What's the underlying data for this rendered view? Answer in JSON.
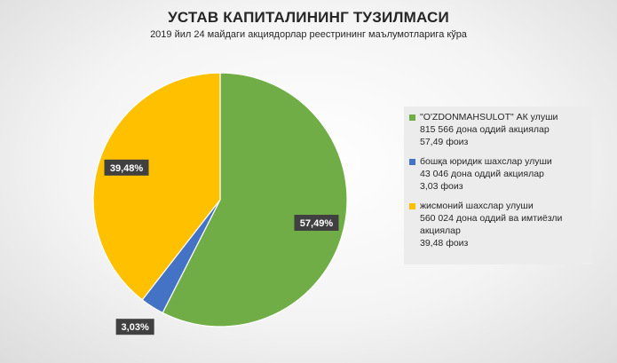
{
  "chart_data": {
    "type": "pie",
    "title": "УСТАВ КАПИТАЛИНИНГ ТУЗИЛМАСИ",
    "subtitle": "2019 йил 24 майдаги акциядорлар реестрининг маълумотларига кўра",
    "slices": [
      {
        "value": 57.49,
        "label": "57,49%",
        "color": "#70ad47",
        "legend_lines": [
          "\"O'ZDONMAHSULOT\" АК улуши",
          "815 566 дона оддий акциялар",
          "57,49 фоиз"
        ]
      },
      {
        "value": 3.03,
        "label": "3,03%",
        "color": "#4472c4",
        "legend_lines": [
          "бошқа юридик шахслар улуши",
          "43 046 дона оддий акциялар",
          "3,03 фоиз"
        ]
      },
      {
        "value": 39.48,
        "label": "39,48%",
        "color": "#ffc000",
        "legend_lines": [
          "жисмоний шахслар улуши",
          "560 024 дона оддий ва имтиёзли акциялар",
          "39,48 фоиз"
        ]
      }
    ],
    "legend_position": "right",
    "data_label_style": "dark callout boxes"
  }
}
